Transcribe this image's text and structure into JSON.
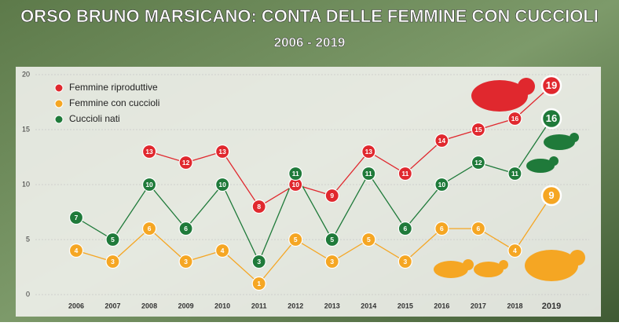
{
  "chart_data": {
    "type": "line",
    "title": "ORSO BRUNO MARSICANO: CONTA DELLE FEMMINE CON CUCCIOLI",
    "subtitle": "2006 - 2019",
    "categories": [
      "2006",
      "2007",
      "2008",
      "2009",
      "2010",
      "2011",
      "2012",
      "2013",
      "2014",
      "2015",
      "2016",
      "2017",
      "2018",
      "2019"
    ],
    "series": [
      {
        "name": "Femmine riproduttive",
        "color": "#e0282e",
        "values": [
          null,
          null,
          13,
          12,
          13,
          8,
          10,
          9,
          13,
          11,
          14,
          15,
          16,
          19
        ]
      },
      {
        "name": "Femmine con cuccioli",
        "color": "#f5a623",
        "values": [
          4,
          3,
          6,
          3,
          4,
          1,
          5,
          3,
          5,
          3,
          6,
          6,
          4,
          9
        ]
      },
      {
        "name": "Cuccioli nati",
        "color": "#1f7a3a",
        "values": [
          7,
          5,
          10,
          6,
          10,
          3,
          11,
          5,
          11,
          6,
          10,
          12,
          11,
          16
        ]
      }
    ],
    "ylim": [
      0,
      20
    ],
    "yticks": [
      0,
      5,
      10,
      15,
      20
    ],
    "grid": true,
    "legend": "top-left"
  }
}
